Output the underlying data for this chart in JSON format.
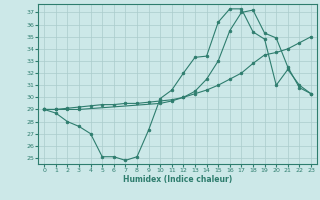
{
  "xlabel": "Humidex (Indice chaleur)",
  "background_color": "#cce8e8",
  "grid_color": "#aacccc",
  "line_color": "#2e7d6e",
  "xlim": [
    -0.5,
    23.5
  ],
  "ylim": [
    24.5,
    37.7
  ],
  "yticks": [
    25,
    26,
    27,
    28,
    29,
    30,
    31,
    32,
    33,
    34,
    35,
    36,
    37
  ],
  "xticks": [
    0,
    1,
    2,
    3,
    4,
    5,
    6,
    7,
    8,
    9,
    10,
    11,
    12,
    13,
    14,
    15,
    16,
    17,
    18,
    19,
    20,
    21,
    22,
    23
  ],
  "line1_x": [
    0,
    1,
    2,
    3,
    4,
    5,
    6,
    7,
    8,
    9,
    10,
    11,
    12,
    13,
    14,
    15,
    16,
    17,
    18,
    19,
    20,
    21,
    22,
    23
  ],
  "line1_y": [
    29.0,
    28.7,
    28.0,
    27.6,
    27.0,
    25.1,
    25.1,
    24.8,
    25.1,
    27.3,
    29.9,
    30.6,
    32.0,
    33.3,
    33.4,
    36.2,
    37.3,
    37.3,
    35.4,
    34.8,
    31.0,
    32.3,
    31.0,
    30.3
  ],
  "line2_x": [
    0,
    1,
    2,
    3,
    10,
    11,
    12,
    13,
    14,
    15,
    16,
    17,
    18,
    19,
    20,
    21,
    22,
    23
  ],
  "line2_y": [
    29.0,
    29.0,
    29.0,
    29.0,
    29.5,
    29.7,
    30.0,
    30.5,
    31.5,
    33.0,
    35.5,
    37.0,
    37.2,
    35.3,
    34.9,
    32.5,
    30.8,
    30.3
  ],
  "line3_x": [
    0,
    1,
    2,
    3,
    4,
    5,
    6,
    7,
    8,
    9,
    10,
    11,
    12,
    13,
    14,
    15,
    16,
    17,
    18,
    19,
    20,
    21,
    22,
    23
  ],
  "line3_y": [
    29.0,
    29.0,
    29.1,
    29.2,
    29.3,
    29.4,
    29.4,
    29.5,
    29.5,
    29.6,
    29.7,
    29.8,
    30.0,
    30.3,
    30.6,
    31.0,
    31.5,
    32.0,
    32.8,
    33.5,
    33.7,
    34.0,
    34.5,
    35.0
  ]
}
